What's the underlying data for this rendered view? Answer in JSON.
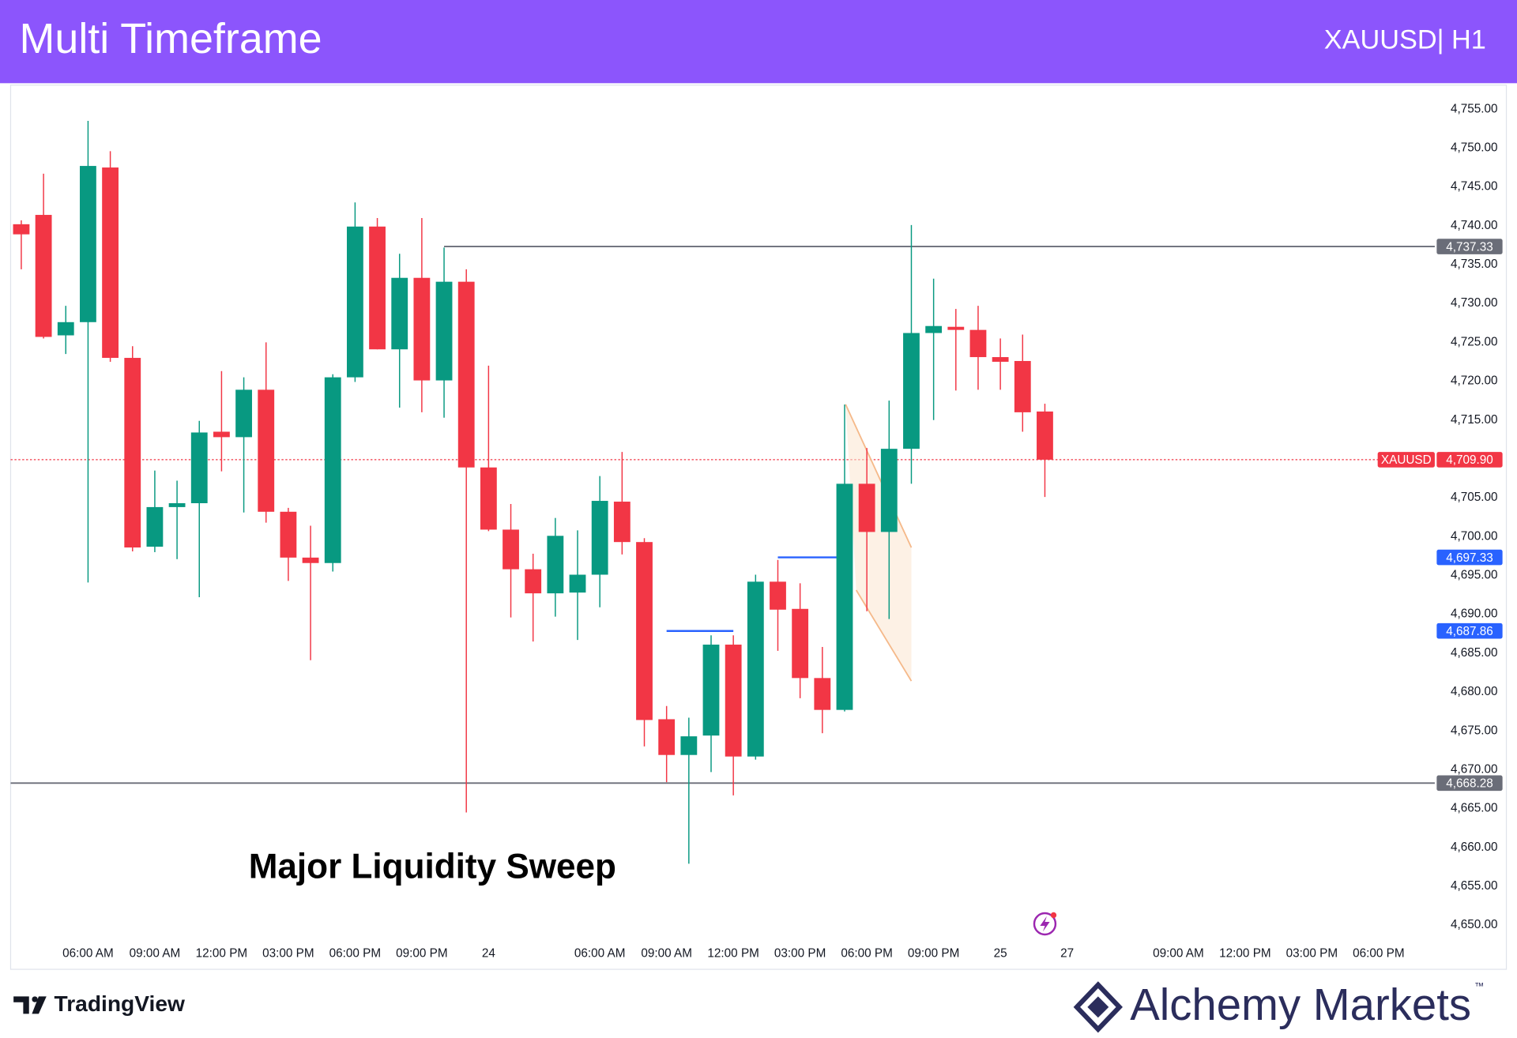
{
  "header": {
    "title": "Multi Timeframe",
    "symbol": "XAUUSD| H1"
  },
  "chart_data": {
    "type": "candlestick",
    "annotation": "Major Liquidity Sweep",
    "categories": [
      null,
      null,
      null,
      "06:00 AM",
      null,
      null,
      "09:00 AM",
      null,
      null,
      "12:00 PM",
      null,
      null,
      "03:00 PM",
      null,
      null,
      "06:00 PM",
      null,
      null,
      "09:00 PM",
      null,
      null,
      "24",
      null,
      null,
      null,
      null,
      "06:00 AM",
      null,
      null,
      "09:00 AM",
      null,
      null,
      "12:00 PM",
      null,
      null,
      "03:00 PM",
      null,
      null,
      "06:00 PM",
      null,
      null,
      "09:00 PM",
      null,
      null,
      "25",
      null,
      null,
      "27",
      null,
      null,
      null,
      null,
      "09:00 AM",
      null,
      null,
      "12:00 PM",
      null,
      null,
      "03:00 PM",
      null,
      null,
      "06:00 PM",
      null,
      null
    ],
    "open": [
      4740.2,
      4741.4,
      4725.9,
      4727.6,
      4747.5,
      4723.0,
      4698.7,
      4703.8,
      4704.3,
      4713.5,
      4712.8,
      4718.9,
      4703.2,
      4697.3,
      4696.6,
      4720.5,
      4739.9,
      4724.1,
      4733.3,
      4720.1,
      4732.8,
      4708.9,
      4700.9,
      4695.8,
      4692.7,
      4692.8,
      4695.1,
      4704.5,
      4699.3,
      4676.5,
      4671.9,
      4674.4,
      4686.1,
      4671.7,
      4694.2,
      4690.7,
      4681.8,
      4677.7,
      4706.8,
      4700.6,
      4711.3,
      4726.2,
      4727.0,
      4726.6,
      4723.1,
      4722.6,
      4716.1,
      null,
      null,
      null,
      null,
      null,
      null,
      null,
      null,
      null,
      null,
      null,
      null,
      null,
      null,
      null,
      null,
      null
    ],
    "high": [
      4740.7,
      4746.7,
      4729.7,
      4753.5,
      4749.6,
      4724.5,
      4708.5,
      4707.2,
      4714.9,
      4721.3,
      4720.5,
      4725.0,
      4703.7,
      4701.4,
      4720.9,
      4743.0,
      4741.0,
      4736.4,
      4741.0,
      4737.2,
      4734.4,
      4722.0,
      4704.2,
      4697.8,
      4702.4,
      4700.8,
      4707.8,
      4710.9,
      4699.8,
      4678.2,
      4676.7,
      4687.3,
      4687.3,
      4695.1,
      4697.0,
      4694.0,
      4685.8,
      4717.0,
      4711.4,
      4717.5,
      4740.1,
      4733.2,
      4729.3,
      4729.7,
      4725.5,
      4726.0,
      4717.1,
      null,
      null,
      null,
      null,
      null,
      null,
      null,
      null,
      null,
      null,
      null,
      null,
      null,
      null,
      null,
      null,
      null
    ],
    "low": [
      4734.4,
      4725.5,
      4723.5,
      4694.1,
      4722.5,
      4698.1,
      4698.0,
      4697.1,
      4692.2,
      4708.4,
      4703.1,
      4701.8,
      4694.3,
      4684.1,
      4695.5,
      4719.9,
      4724.1,
      4716.6,
      4716.0,
      4715.3,
      4664.5,
      4700.7,
      4689.6,
      4686.5,
      4689.7,
      4686.7,
      4690.9,
      4697.7,
      4673.0,
      4668.4,
      4657.9,
      4669.7,
      4666.7,
      4671.3,
      4685.3,
      4679.2,
      4674.7,
      4677.5,
      4690.4,
      4689.4,
      4706.8,
      4715.0,
      4718.8,
      4718.9,
      4718.9,
      4713.5,
      4705.1,
      null,
      null,
      null,
      null,
      null,
      null,
      null,
      null,
      null,
      null,
      null,
      null,
      null,
      null,
      null,
      null,
      null
    ],
    "close": [
      4738.9,
      4725.7,
      4727.6,
      4747.7,
      4723.0,
      4698.6,
      4703.8,
      4704.3,
      4713.4,
      4712.8,
      4718.9,
      4703.2,
      4697.3,
      4696.6,
      4720.5,
      4739.9,
      4724.1,
      4733.3,
      4720.1,
      4732.8,
      4708.9,
      4700.9,
      4695.8,
      4692.7,
      4700.1,
      4695.1,
      4704.6,
      4699.3,
      4676.4,
      4671.9,
      4674.3,
      4686.1,
      4671.7,
      4694.2,
      4690.6,
      4681.8,
      4677.7,
      4706.8,
      4700.6,
      4711.3,
      4726.2,
      4727.1,
      4726.6,
      4723.1,
      4722.5,
      4716.0,
      4709.9,
      null,
      null,
      null,
      null,
      null,
      null,
      null,
      null,
      null,
      null,
      null,
      null,
      null,
      null,
      null,
      null,
      null
    ],
    "up_color": "#089981",
    "down_color": "#f23645",
    "ylim": [
      4648.3,
      4758.1
    ],
    "yticks": [
      {
        "value": 4650,
        "label": "4,650.00"
      },
      {
        "value": 4655,
        "label": "4,655.00"
      },
      {
        "value": 4660,
        "label": "4,660.00"
      },
      {
        "value": 4665,
        "label": "4,665.00"
      },
      {
        "value": 4670,
        "label": "4,670.00"
      },
      {
        "value": 4675,
        "label": "4,675.00"
      },
      {
        "value": 4680,
        "label": "4,680.00"
      },
      {
        "value": 4685,
        "label": "4,685.00"
      },
      {
        "value": 4690,
        "label": "4,690.00"
      },
      {
        "value": 4695,
        "label": "4,695.00"
      },
      {
        "value": 4700,
        "label": "4,700.00"
      },
      {
        "value": 4705,
        "label": "4,705.00"
      },
      {
        "value": 4710,
        "label": "4,710.00"
      },
      {
        "value": 4715,
        "label": "4,715.00"
      },
      {
        "value": 4720,
        "label": "4,720.00"
      },
      {
        "value": 4725,
        "label": "4,725.00"
      },
      {
        "value": 4730,
        "label": "4,730.00"
      },
      {
        "value": 4735,
        "label": "4,735.00"
      },
      {
        "value": 4740,
        "label": "4,740.00"
      },
      {
        "value": 4745,
        "label": "4,745.00"
      },
      {
        "value": 4750,
        "label": "4,750.00"
      },
      {
        "value": 4755,
        "label": "4,755.00"
      }
    ],
    "levels": [
      {
        "value": 4737.33,
        "label": "4,737.33",
        "color": "#6a6d78",
        "start": 19
      },
      {
        "value": 4668.28,
        "label": "4,668.28",
        "color": "#6a6d78",
        "start": 0
      },
      {
        "value": 4697.33,
        "label": "4,697.33",
        "color": "#2962ff",
        "start": 34,
        "end": 37
      },
      {
        "value": 4687.86,
        "label": "4,687.86",
        "color": "#2962ff",
        "start": 29,
        "end": 32
      }
    ],
    "last_price": {
      "name": "XAUUSD",
      "value": 4709.9,
      "label": "4,709.90",
      "color": "#f23645"
    }
  },
  "footer": {
    "platform": "TradingView",
    "brand": "Alchemy Markets",
    "trademark": "™"
  }
}
